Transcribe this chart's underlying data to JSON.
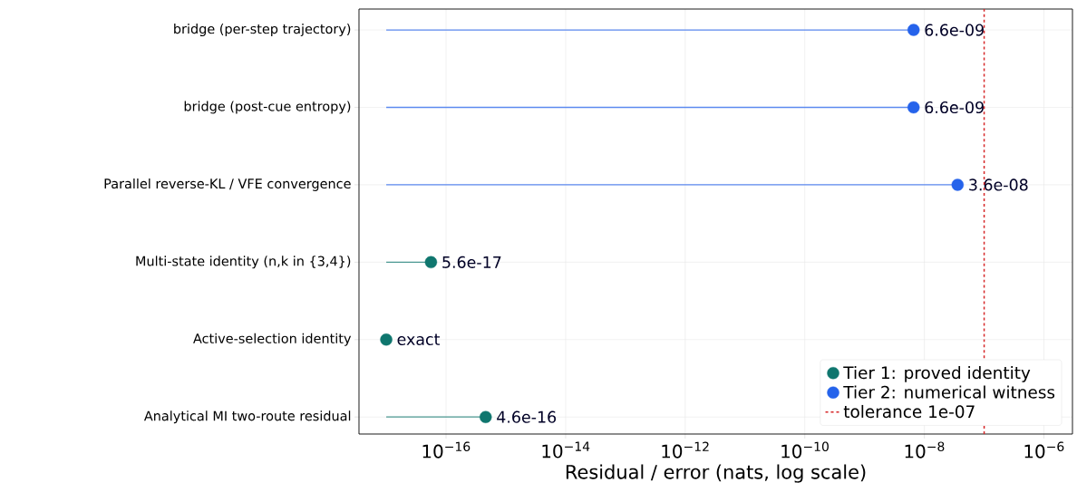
{
  "chart_data": {
    "type": "lollipop",
    "orientation": "horizontal",
    "xlabel": "Residual / error (nats, log scale)",
    "categories": [
      "bridge (per-step trajectory)",
      "bridge (post-cue entropy)",
      "Parallel reverse-KL / VFE convergence",
      "Multi-state identity (n,k in {3,4})",
      "Active-selection identity",
      "Analytical MI two-route residual"
    ],
    "series": [
      {
        "name": "Tier 1: proved identity",
        "color": "#0f766e",
        "values": [
          null,
          null,
          null,
          5.6e-17,
          1e-17,
          4.6e-16
        ],
        "value_labels": [
          null,
          null,
          null,
          "5.6e-17",
          "exact",
          "4.6e-16"
        ]
      },
      {
        "name": "Tier 2: numerical witness",
        "color": "#2563eb",
        "values": [
          6.6e-09,
          6.6e-09,
          3.6e-08,
          null,
          null,
          null
        ],
        "value_labels": [
          "6.6e-09",
          "6.6e-09",
          "3.6e-08",
          null,
          null,
          null
        ]
      }
    ],
    "log": "x",
    "xlim": [
      3.5e-18,
      3e-06
    ],
    "xticks": [
      {
        "value": 1e-16,
        "label": "10$^{−16}$"
      },
      {
        "value": 1e-14,
        "label": "10$^{−14}$"
      },
      {
        "value": 1e-12,
        "label": "10$^{−12}$"
      },
      {
        "value": 1e-10,
        "label": "10$^{−10}$"
      },
      {
        "value": 1e-08,
        "label": "10$^{−8}$"
      },
      {
        "value": 1e-06,
        "label": "10$^{−6}$"
      }
    ],
    "ref_lines": [
      {
        "axis": "x",
        "value": 1e-07,
        "label": "tolerance 1e-07",
        "color": "#d62728",
        "line_style": "dashed"
      }
    ],
    "grid": true,
    "legend": "bottom right"
  }
}
